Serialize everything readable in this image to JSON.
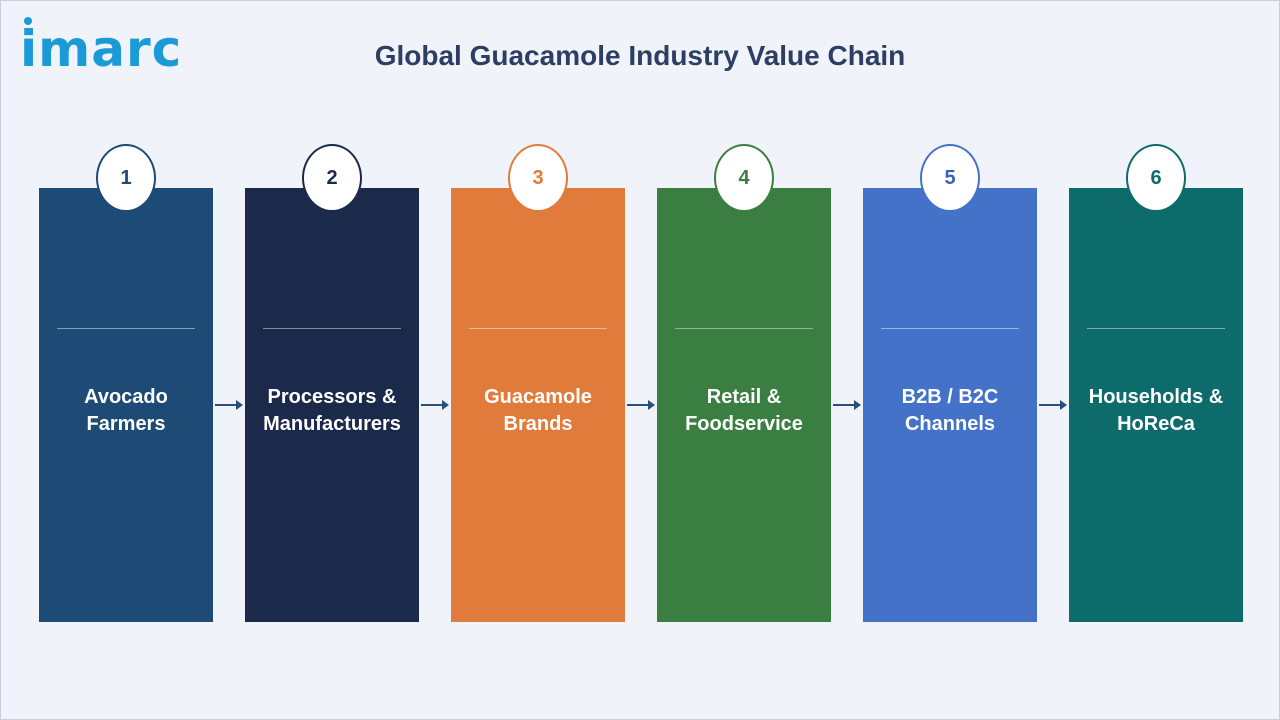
{
  "brand": {
    "logo_text": "imarc"
  },
  "title": "Global Guacamole Industry Value Chain",
  "steps": [
    {
      "number": "1",
      "label": "Avocado\nFarmers",
      "color": "#1e4b75",
      "number_color": "#1e4b75",
      "border_color": "#1e4b75"
    },
    {
      "number": "2",
      "label": "Processors &\nManufacturers",
      "color": "#1b294a",
      "number_color": "#1b294a",
      "border_color": "#1b294a"
    },
    {
      "number": "3",
      "label": "Guacamole\nBrands",
      "color": "#e07b3c",
      "number_color": "#e07b3c",
      "border_color": "#e07b3c"
    },
    {
      "number": "4",
      "label": "Retail &\nFoodservice",
      "color": "#3a7f41",
      "number_color": "#3a7f41",
      "border_color": "#3a7f41"
    },
    {
      "number": "5",
      "label": "B2B / B2C\nChannels",
      "color": "#4472c8",
      "number_color": "#3a62b0",
      "border_color": "#4472c8"
    },
    {
      "number": "6",
      "label": "Households &\nHoReCa",
      "color": "#0e6b6b",
      "number_color": "#0e6b6b",
      "border_color": "#0e6b6b"
    }
  ]
}
